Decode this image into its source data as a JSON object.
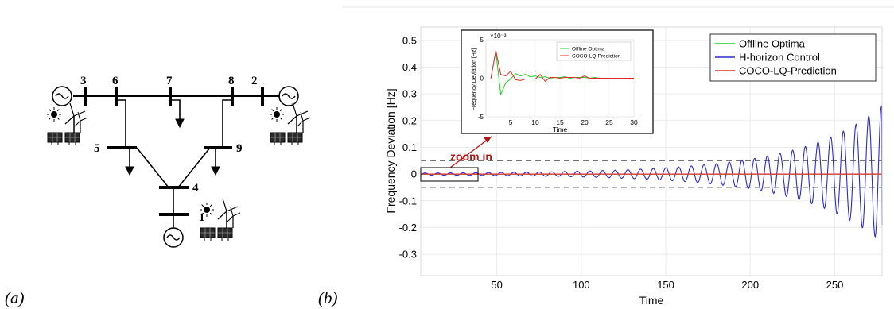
{
  "panel_labels": [
    "(a)",
    "(b)"
  ],
  "network": {
    "bus_labels": [
      "1",
      "2",
      "3",
      "4",
      "5",
      "6",
      "7",
      "8",
      "9"
    ]
  },
  "chart_data": {
    "type": "line",
    "xlabel": "Time",
    "ylabel": "Frequency Deviation [Hz]",
    "xlim": [
      5,
      278
    ],
    "ylim": [
      -0.38,
      0.55
    ],
    "xticks": [
      50,
      100,
      150,
      200,
      250
    ],
    "yticks": [
      0.5,
      0.4,
      0.3,
      0.2,
      0.1,
      0,
      -0.1,
      -0.2,
      -0.3
    ],
    "ytick_labels": [
      "0.5",
      "0.4",
      "0.3",
      "0.2",
      "0.1",
      "0",
      "-0.1",
      "-0.2",
      "-0.3"
    ],
    "grid": true,
    "legend_position": "top-right",
    "dashed_bounds": [
      0.05,
      -0.05
    ],
    "oscillation": {
      "amplitude_start": 0.004,
      "amplitude_end": 0.255,
      "period": 7.5,
      "x_start": 5,
      "x_end": 278,
      "end_value": -0.19
    },
    "series": [
      {
        "name": "Offline Optima",
        "color": "#1fd01f",
        "values": "constant 0"
      },
      {
        "name": "H-horizon Control",
        "color": "#2a2ad6",
        "values": "growing oscillation"
      },
      {
        "name": "COCO-LQ-Prediction",
        "color": "#e52a2a",
        "values": "constant 0"
      }
    ],
    "annotation": "zoom in",
    "inset": {
      "xlabel": "Time",
      "ylabel": "Frequency Deviation [Hz]",
      "exponent_label": "×10⁻³",
      "xlim": [
        0,
        30
      ],
      "ylim": [
        -5,
        5
      ],
      "xticks": [
        5,
        10,
        15,
        20,
        25,
        30
      ],
      "yticks": [
        5,
        0,
        -5
      ],
      "legend": [
        "Offline Optima",
        "COCO-LQ-Prediction"
      ],
      "series": [
        {
          "name": "Offline Optima",
          "color": "#1fd01f",
          "x": [
            1,
            2,
            3,
            4,
            5,
            6,
            7,
            8,
            9,
            10,
            11,
            12,
            13,
            14,
            15,
            16,
            17,
            18,
            19,
            20,
            21,
            22,
            23,
            24,
            25,
            26,
            27,
            28,
            29,
            30
          ],
          "y": [
            0,
            3.5,
            -2.1,
            -0.6,
            -0.1,
            0.6,
            0.3,
            0.5,
            0.2,
            0.3,
            0.1,
            0.2,
            0,
            0.1,
            0.1,
            0.2,
            0,
            0.1,
            0.1,
            0.1,
            0,
            0.1,
            0,
            0,
            0,
            0,
            0,
            0,
            0,
            0
          ]
        },
        {
          "name": "COCO-LQ-Prediction",
          "color": "#e52a2a",
          "x": [
            1,
            2,
            3,
            4,
            5,
            6,
            7,
            8,
            9,
            10,
            11,
            12,
            13,
            14,
            15,
            16,
            17,
            18,
            19,
            20,
            21,
            22,
            23,
            24,
            25,
            26,
            27,
            28,
            29,
            30
          ],
          "y": [
            0,
            3.6,
            0.5,
            0.3,
            0.9,
            -0.2,
            -0.3,
            -0.1,
            -0.1,
            -0.1,
            0.5,
            -0.4,
            0.1,
            0.1,
            0,
            0.1,
            0.1,
            0.1,
            0,
            0.3,
            0,
            0,
            0,
            0,
            0,
            0,
            0,
            0,
            0,
            0
          ]
        }
      ]
    }
  }
}
